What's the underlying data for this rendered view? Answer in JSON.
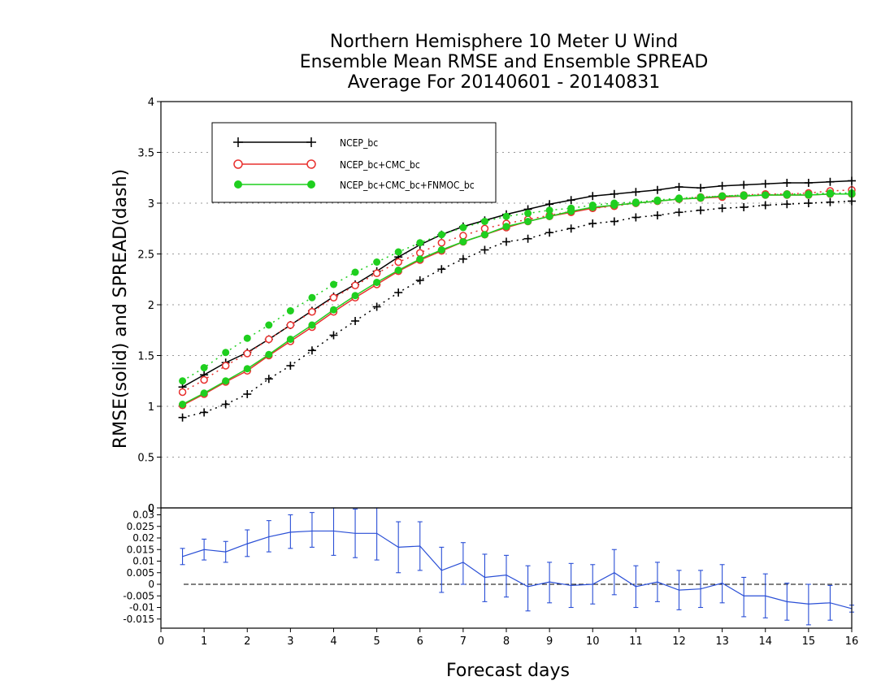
{
  "title_lines": [
    "Northern Hemisphere 10 Meter U Wind",
    "Ensemble Mean RMSE and Ensemble SPREAD",
    "Average For 20140601 - 20140831"
  ],
  "colors": {
    "ncep_bc": "#000000",
    "ncep_bc_cmc_bc": "#e8302e",
    "ncep_bc_cmc_bc_fnmoc_bc": "#1fcf1f",
    "difference": "#2a4fd6"
  },
  "chart_data": [
    {
      "type": "line",
      "title": "Northern Hemisphere 10 Meter U Wind / Ensemble Mean RMSE and Ensemble SPREAD / Average For 20140601 - 20140831",
      "ylabel": "RMSE(solid) and SPREAD(dash)",
      "xlabel": "Forecast days",
      "xlim": [
        0,
        16
      ],
      "ylim": [
        0,
        4
      ],
      "x_ticks": [
        "0",
        "1",
        "2",
        "3",
        "4",
        "5",
        "6",
        "7",
        "8",
        "9",
        "10",
        "11",
        "12",
        "13",
        "14",
        "15",
        "16"
      ],
      "y_ticks": [
        "0",
        "0.5",
        "1",
        "1.5",
        "2",
        "2.5",
        "3",
        "3.5",
        "4"
      ],
      "grid": "horizontal dotted",
      "legend_position": "top-left",
      "x": [
        0.5,
        1,
        1.5,
        2,
        2.5,
        3,
        3.5,
        4,
        4.5,
        5,
        5.5,
        6,
        6.5,
        7,
        7.5,
        8,
        8.5,
        9,
        9.5,
        10,
        10.5,
        11,
        11.5,
        12,
        12.5,
        13,
        13.5,
        14,
        14.5,
        15,
        15.5,
        16
      ],
      "series": [
        {
          "name": "NCEP_bc",
          "color": "#000000",
          "marker": "plus",
          "rmse": [
            1.19,
            1.31,
            1.43,
            1.53,
            1.66,
            1.8,
            1.94,
            2.08,
            2.2,
            2.33,
            2.47,
            2.59,
            2.69,
            2.77,
            2.83,
            2.89,
            2.94,
            2.99,
            3.03,
            3.07,
            3.09,
            3.11,
            3.13,
            3.16,
            3.15,
            3.17,
            3.18,
            3.19,
            3.2,
            3.2,
            3.21,
            3.22
          ],
          "spread": [
            0.89,
            0.94,
            1.02,
            1.12,
            1.27,
            1.4,
            1.55,
            1.7,
            1.84,
            1.98,
            2.12,
            2.24,
            2.35,
            2.45,
            2.54,
            2.62,
            2.65,
            2.71,
            2.75,
            2.8,
            2.82,
            2.86,
            2.88,
            2.91,
            2.93,
            2.95,
            2.96,
            2.98,
            2.99,
            3.0,
            3.01,
            3.02
          ]
        },
        {
          "name": "NCEP_bc+CMC_bc",
          "color": "#e8302e",
          "marker": "open-circle",
          "rmse": [
            1.01,
            1.12,
            1.24,
            1.35,
            1.5,
            1.64,
            1.78,
            1.93,
            2.07,
            2.2,
            2.33,
            2.44,
            2.53,
            2.62,
            2.69,
            2.76,
            2.82,
            2.87,
            2.91,
            2.95,
            2.98,
            3.0,
            3.02,
            3.04,
            3.05,
            3.06,
            3.07,
            3.08,
            3.08,
            3.08,
            3.09,
            3.09
          ],
          "spread": [
            1.14,
            1.26,
            1.4,
            1.52,
            1.66,
            1.8,
            1.93,
            2.07,
            2.19,
            2.31,
            2.42,
            2.51,
            2.61,
            2.68,
            2.75,
            2.8,
            2.84,
            2.88,
            2.92,
            2.95,
            2.97,
            3.0,
            3.02,
            3.04,
            3.06,
            3.07,
            3.08,
            3.09,
            3.09,
            3.1,
            3.12,
            3.13
          ]
        },
        {
          "name": "NCEP_bc+CMC_bc+FNMOC_bc",
          "color": "#1fcf1f",
          "marker": "filled-circle",
          "rmse": [
            1.02,
            1.13,
            1.25,
            1.37,
            1.51,
            1.66,
            1.8,
            1.95,
            2.09,
            2.22,
            2.34,
            2.45,
            2.54,
            2.62,
            2.69,
            2.77,
            2.82,
            2.87,
            2.92,
            2.96,
            2.98,
            3.0,
            3.02,
            3.04,
            3.05,
            3.07,
            3.07,
            3.08,
            3.08,
            3.08,
            3.09,
            3.09
          ],
          "spread": [
            1.25,
            1.38,
            1.53,
            1.67,
            1.8,
            1.94,
            2.07,
            2.2,
            2.32,
            2.42,
            2.52,
            2.61,
            2.69,
            2.76,
            2.82,
            2.87,
            2.9,
            2.93,
            2.95,
            2.98,
            3.0,
            3.01,
            3.03,
            3.05,
            3.06,
            3.07,
            3.08,
            3.08,
            3.09,
            3.09,
            3.1,
            3.1
          ]
        }
      ]
    },
    {
      "type": "line",
      "title": "",
      "xlabel": "Forecast days",
      "ylabel": "",
      "xlim": [
        0,
        16
      ],
      "ylim": [
        -0.018,
        0.035
      ],
      "y_ticks": [
        "0.03",
        "0.025",
        "0.02",
        "0.015",
        "0.01",
        "0.005",
        "0",
        "-0.005",
        "-0.01",
        "-0.015"
      ],
      "top_tick_label": "0",
      "zero_line": "dashed",
      "x": [
        0.5,
        1,
        1.5,
        2,
        2.5,
        3,
        3.5,
        4,
        4.5,
        5,
        5.5,
        6,
        6.5,
        7,
        7.5,
        8,
        8.5,
        9,
        9.5,
        10,
        10.5,
        11,
        11.5,
        12,
        12.5,
        13,
        13.5,
        14,
        14.5,
        15,
        15.5,
        16
      ],
      "series": [
        {
          "name": "",
          "color": "#2a4fd6",
          "values": [
            0.012,
            0.015,
            0.014,
            0.0175,
            0.0205,
            0.0225,
            0.023,
            0.023,
            0.022,
            0.022,
            0.016,
            0.0165,
            0.006,
            0.0095,
            0.003,
            0.004,
            -0.001,
            0.001,
            -0.0005,
            0.0,
            0.005,
            -0.001,
            0.001,
            -0.0025,
            -0.002,
            0.0005,
            -0.005,
            -0.005,
            -0.0075,
            -0.0085,
            -0.008,
            -0.0105
          ],
          "error_low": [
            0.0085,
            0.0105,
            0.0095,
            0.012,
            0.014,
            0.0155,
            0.016,
            0.0125,
            0.0115,
            0.0105,
            0.005,
            0.006,
            -0.0035,
            0.0,
            -0.0075,
            -0.0055,
            -0.0115,
            -0.008,
            -0.01,
            -0.0085,
            -0.0045,
            -0.01,
            -0.0075,
            -0.011,
            -0.01,
            -0.008,
            -0.014,
            -0.0145,
            -0.0155,
            -0.0175,
            -0.0155,
            -0.012
          ],
          "error_high": [
            0.0155,
            0.0195,
            0.0185,
            0.0235,
            0.0275,
            0.03,
            0.031,
            0.033,
            0.0325,
            0.033,
            0.027,
            0.027,
            0.016,
            0.018,
            0.013,
            0.0125,
            0.008,
            0.0095,
            0.009,
            0.0085,
            0.015,
            0.008,
            0.0095,
            0.006,
            0.006,
            0.0085,
            0.003,
            0.0045,
            0.0005,
            0.0,
            -0.0005,
            -0.009
          ]
        }
      ]
    }
  ]
}
